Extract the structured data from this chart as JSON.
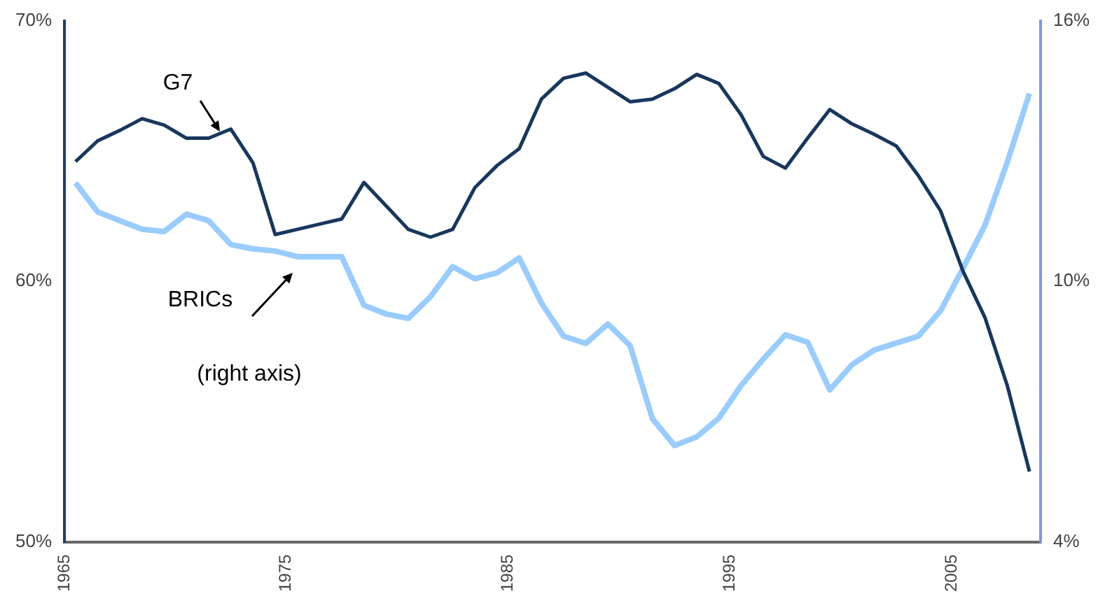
{
  "chart_data": {
    "type": "line",
    "x": [
      1965.5,
      1966.5,
      1967.5,
      1968.5,
      1969.5,
      1970.5,
      1971.5,
      1972.5,
      1973.5,
      1974.5,
      1975.5,
      1976.5,
      1977.5,
      1978.5,
      1979.5,
      1980.5,
      1981.5,
      1982.5,
      1983.5,
      1984.5,
      1985.5,
      1986.5,
      1987.5,
      1988.5,
      1989.5,
      1990.5,
      1991.5,
      1992.5,
      1993.5,
      1994.5,
      1995.5,
      1996.5,
      1997.5,
      1998.5,
      1999.5,
      2000.5,
      2001.5,
      2002.5,
      2003.5,
      2004.5,
      2005.5,
      2006.5,
      2007.5,
      2008.5
    ],
    "series": [
      {
        "color": "#17375e",
        "values": [
          64.6,
          65.4,
          65.8,
          66.25,
          66.0,
          65.5,
          65.5,
          65.85,
          64.55,
          61.8,
          62.0,
          62.2,
          62.4,
          63.8,
          62.9,
          62.0,
          61.7,
          62.0,
          63.6,
          64.45,
          65.1,
          67.0,
          67.8,
          68.0,
          67.45,
          66.9,
          67.0,
          67.4,
          67.95,
          67.6,
          66.4,
          64.8,
          64.35,
          65.5,
          66.6,
          66.05,
          65.65,
          65.2,
          64.05,
          62.7,
          60.4,
          58.6,
          56.0,
          52.7
        ]
      },
      {
        "color": "#99ccff",
        "axis": "y2",
        "values": [
          12.27,
          11.6,
          11.4,
          11.2,
          11.15,
          11.55,
          11.4,
          10.85,
          10.75,
          10.7,
          10.57,
          10.57,
          10.57,
          9.45,
          9.25,
          9.15,
          9.65,
          10.34,
          10.06,
          10.2,
          10.54,
          9.5,
          8.74,
          8.57,
          9.02,
          8.52,
          6.84,
          6.22,
          6.42,
          6.85,
          7.6,
          8.21,
          8.77,
          8.6,
          7.5,
          8.08,
          8.42,
          8.58,
          8.74,
          9.33,
          10.3,
          11.3,
          12.75,
          14.33
        ]
      }
    ],
    "xlim": [
      1965,
      2009
    ],
    "xticks": [
      1965,
      1975,
      1985,
      1995,
      2005
    ],
    "ylim": [
      50,
      70
    ],
    "yticks": [
      {
        "value": 50,
        "label": "50%"
      },
      {
        "value": 60,
        "label": "60%"
      },
      {
        "value": 70,
        "label": "70%"
      }
    ],
    "y2lim": [
      4,
      16
    ],
    "y2ticks": [
      {
        "value": 4,
        "label": "4%"
      },
      {
        "value": 10,
        "label": "10%"
      },
      {
        "value": 16,
        "label": "16%"
      }
    ],
    "annotations": [
      "G7",
      "BRICs",
      "(right axis)"
    ],
    "grid": false,
    "legend": false,
    "marker": "none",
    "line_style": "solid"
  }
}
